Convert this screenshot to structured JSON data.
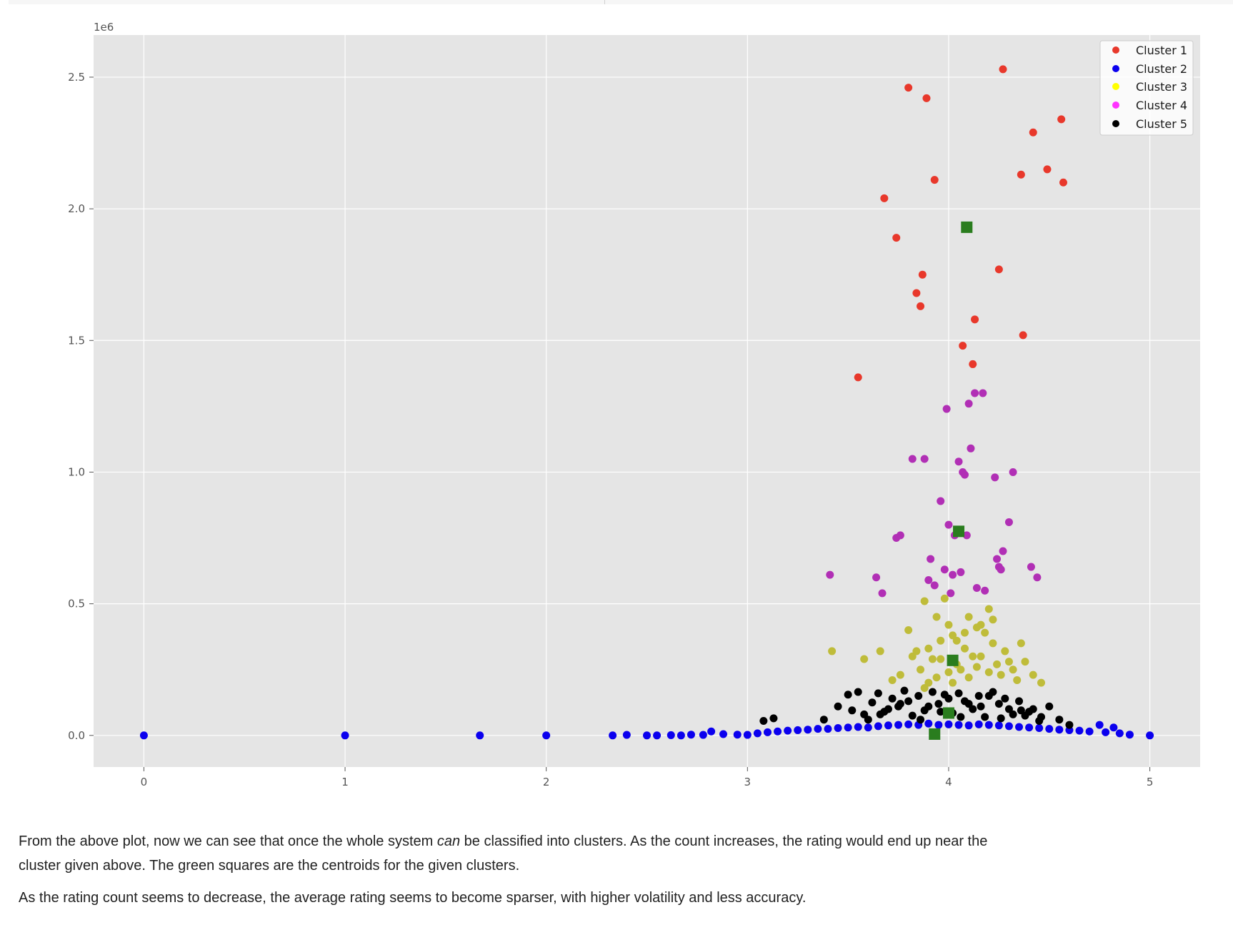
{
  "colors": {
    "plot_background": "#e5e5e5",
    "grid": "#ffffff",
    "cluster_1": "#e8382b",
    "cluster_2": "#0b00ee",
    "cluster_3": "#bfbc3a",
    "cluster_4": "#b12fb5",
    "cluster_5": "#000000",
    "centroid": "#2a7d1e",
    "legend_cluster_3": "#ffff00",
    "legend_cluster_4": "#ff33ff"
  },
  "chart_data": {
    "type": "scatter",
    "title": "",
    "xlabel": "",
    "ylabel": "",
    "xlim": [
      -0.25,
      5.25
    ],
    "ylim": [
      -120000,
      2660000
    ],
    "y_offset_label": "1e6",
    "x_ticks": [
      0,
      1,
      2,
      3,
      4,
      5
    ],
    "x_tick_labels": [
      "0",
      "1",
      "2",
      "3",
      "4",
      "5"
    ],
    "y_ticks": [
      0,
      500000,
      1000000,
      1500000,
      2000000,
      2500000
    ],
    "y_tick_labels": [
      "0.0",
      "0.5",
      "1.0",
      "1.5",
      "2.0",
      "2.5"
    ],
    "grid": true,
    "legend_position": "top-right",
    "legend": [
      "Cluster 1",
      "Cluster 2",
      "Cluster 3",
      "Cluster 4",
      "Cluster 5"
    ],
    "series": [
      {
        "name": "Cluster 1",
        "x": [
          3.55,
          3.68,
          3.74,
          3.8,
          3.84,
          3.86,
          3.87,
          3.89,
          3.93,
          4.07,
          4.12,
          4.13,
          4.25,
          4.27,
          4.36,
          4.37,
          4.42,
          4.49,
          4.56,
          4.57
        ],
        "y": [
          1360000,
          2040000,
          1890000,
          2460000,
          1680000,
          1630000,
          1750000,
          2420000,
          2110000,
          1480000,
          1410000,
          1580000,
          1770000,
          2530000,
          2130000,
          1520000,
          2290000,
          2150000,
          2340000,
          2100000
        ]
      },
      {
        "name": "Cluster 2",
        "x": [
          0.0,
          1.0,
          1.67,
          2.0,
          2.33,
          2.4,
          2.5,
          2.55,
          2.62,
          2.67,
          2.72,
          2.78,
          2.82,
          2.88,
          2.95,
          3.0,
          3.05,
          3.1,
          3.15,
          3.2,
          3.25,
          3.3,
          3.35,
          3.4,
          3.45,
          3.5,
          3.55,
          3.6,
          3.65,
          3.7,
          3.75,
          3.8,
          3.85,
          3.9,
          3.95,
          4.0,
          4.05,
          4.1,
          4.15,
          4.2,
          4.25,
          4.3,
          4.35,
          4.4,
          4.45,
          4.5,
          4.55,
          4.6,
          4.65,
          4.7,
          4.75,
          4.78,
          4.82,
          4.85,
          4.9,
          5.0
        ],
        "y": [
          0,
          0,
          0,
          0,
          0,
          2000,
          0,
          0,
          1000,
          0,
          3000,
          2000,
          15000,
          5000,
          3000,
          2000,
          8000,
          12000,
          15000,
          18000,
          20000,
          22000,
          25000,
          25000,
          28000,
          30000,
          32000,
          30000,
          35000,
          38000,
          40000,
          42000,
          40000,
          45000,
          40000,
          42000,
          40000,
          38000,
          42000,
          40000,
          38000,
          35000,
          32000,
          30000,
          28000,
          25000,
          22000,
          20000,
          18000,
          15000,
          40000,
          12000,
          30000,
          8000,
          3000,
          0
        ]
      },
      {
        "name": "Cluster 3",
        "x": [
          3.42,
          3.58,
          3.66,
          3.72,
          3.76,
          3.8,
          3.82,
          3.86,
          3.88,
          3.9,
          3.92,
          3.94,
          3.96,
          3.98,
          4.0,
          4.02,
          4.04,
          4.06,
          4.08,
          4.1,
          4.12,
          4.14,
          4.16,
          4.18,
          4.2,
          4.22,
          4.24,
          4.26,
          4.28,
          4.3,
          4.32,
          4.34,
          4.36,
          4.38,
          4.42,
          4.46,
          3.84,
          3.9,
          3.96,
          4.0,
          4.04,
          4.1,
          4.16,
          4.22,
          3.88,
          3.94,
          4.02,
          4.08,
          4.14,
          4.2
        ],
        "y": [
          320000,
          290000,
          320000,
          210000,
          230000,
          400000,
          300000,
          250000,
          510000,
          330000,
          290000,
          450000,
          360000,
          520000,
          420000,
          380000,
          270000,
          250000,
          330000,
          450000,
          300000,
          260000,
          420000,
          390000,
          480000,
          350000,
          270000,
          230000,
          320000,
          280000,
          250000,
          210000,
          350000,
          280000,
          230000,
          200000,
          320000,
          200000,
          290000,
          240000,
          360000,
          220000,
          300000,
          440000,
          180000,
          220000,
          200000,
          390000,
          410000,
          240000
        ]
      },
      {
        "name": "Cluster 4",
        "x": [
          3.41,
          3.64,
          3.67,
          3.74,
          3.76,
          3.82,
          3.88,
          3.9,
          3.91,
          3.93,
          3.96,
          3.98,
          3.99,
          4.0,
          4.01,
          4.02,
          4.03,
          4.05,
          4.06,
          4.07,
          4.08,
          4.09,
          4.1,
          4.11,
          4.13,
          4.14,
          4.17,
          4.18,
          4.23,
          4.24,
          4.25,
          4.26,
          4.27,
          4.3,
          4.32,
          4.41,
          4.44
        ],
        "y": [
          610000,
          600000,
          540000,
          750000,
          760000,
          1050000,
          1050000,
          590000,
          670000,
          570000,
          890000,
          630000,
          1240000,
          800000,
          540000,
          610000,
          760000,
          1040000,
          620000,
          1000000,
          990000,
          760000,
          1260000,
          1090000,
          1300000,
          560000,
          1300000,
          550000,
          980000,
          670000,
          640000,
          630000,
          700000,
          810000,
          1000000,
          640000,
          600000
        ]
      },
      {
        "name": "Cluster 5",
        "x": [
          3.08,
          3.13,
          3.38,
          3.45,
          3.5,
          3.52,
          3.55,
          3.58,
          3.62,
          3.65,
          3.68,
          3.72,
          3.75,
          3.78,
          3.82,
          3.85,
          3.88,
          3.92,
          3.95,
          3.98,
          4.02,
          4.05,
          4.08,
          4.12,
          4.15,
          4.18,
          4.22,
          4.25,
          4.28,
          4.32,
          4.35,
          4.38,
          4.42,
          4.45,
          4.5,
          4.55,
          4.6,
          3.6,
          3.7,
          3.8,
          3.9,
          4.0,
          4.1,
          4.2,
          4.3,
          4.4,
          3.66,
          3.76,
          3.86,
          3.96,
          4.06,
          4.16,
          4.26,
          4.36,
          4.46
        ],
        "y": [
          55000,
          65000,
          60000,
          110000,
          155000,
          95000,
          165000,
          80000,
          125000,
          160000,
          90000,
          140000,
          110000,
          170000,
          75000,
          150000,
          95000,
          165000,
          120000,
          155000,
          85000,
          160000,
          130000,
          100000,
          150000,
          70000,
          165000,
          120000,
          140000,
          80000,
          130000,
          75000,
          100000,
          55000,
          110000,
          60000,
          40000,
          60000,
          100000,
          130000,
          110000,
          140000,
          120000,
          150000,
          100000,
          90000,
          80000,
          120000,
          60000,
          90000,
          70000,
          110000,
          65000,
          95000,
          70000
        ]
      },
      {
        "name": "Centroids",
        "x": [
          3.93,
          4.0,
          4.02,
          4.05,
          4.09
        ],
        "y": [
          5000,
          85000,
          285000,
          775000,
          1930000
        ]
      }
    ]
  },
  "text": {
    "para1_pre": "From the above plot, now we can see that once the whole system ",
    "para1_em": "can",
    "para1_post": " be classified into clusters. As the count increases, the rating would end up near the cluster given above. The green squares are the centroids for the given clusters.",
    "para2": "As the rating count seems to decrease, the average rating seems to become sparser, with higher volatility and less accuracy."
  }
}
